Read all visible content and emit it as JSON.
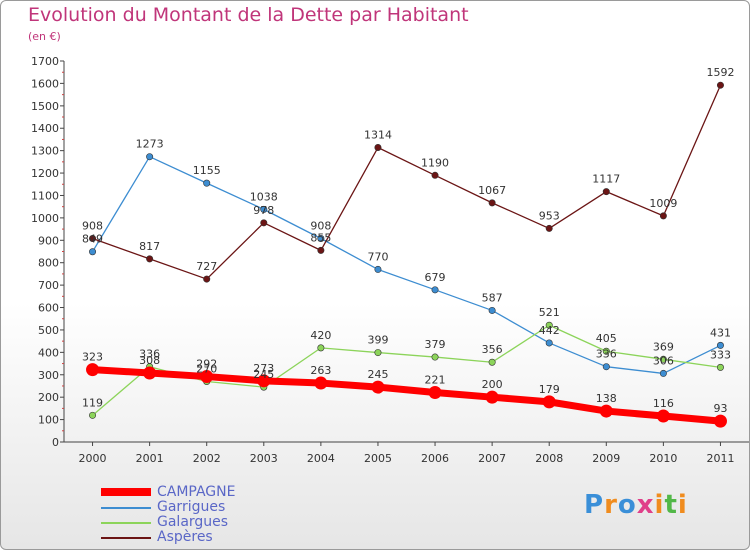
{
  "title": "Evolution du Montant de la Dette par Habitant",
  "unit": "(en €)",
  "logo_text": "Proxiti",
  "chart_data": {
    "type": "line",
    "title": "Evolution du Montant de la Dette par Habitant",
    "subtitle": "(en €)",
    "xlabel": "",
    "ylabel": "",
    "x": [
      "2000",
      "2001",
      "2002",
      "2003",
      "2004",
      "2005",
      "2006",
      "2007",
      "2008",
      "2009",
      "2010",
      "2011"
    ],
    "ylim": [
      0,
      1700
    ],
    "yticks": [
      0,
      100,
      200,
      300,
      400,
      500,
      600,
      700,
      800,
      900,
      1000,
      1100,
      1200,
      1300,
      1400,
      1500,
      1600,
      1700
    ],
    "grid": false,
    "legend_position": "bottom-left",
    "series": [
      {
        "name": "CAMPAGNE",
        "color": "#ff0000",
        "values": [
          323,
          308,
          292,
          273,
          263,
          245,
          221,
          200,
          179,
          138,
          116,
          93
        ]
      },
      {
        "name": "Garrigues",
        "color": "#3d8dd1",
        "values": [
          849,
          1273,
          1155,
          1038,
          908,
          770,
          679,
          587,
          442,
          336,
          306,
          431
        ]
      },
      {
        "name": "Galargues",
        "color": "#8cd45a",
        "values": [
          119,
          336,
          270,
          245,
          420,
          399,
          379,
          356,
          521,
          405,
          369,
          333
        ]
      },
      {
        "name": "Aspères",
        "color": "#6b1515",
        "values": [
          908,
          817,
          727,
          978,
          855,
          1314,
          1190,
          1067,
          953,
          1117,
          1009,
          1592
        ]
      }
    ]
  }
}
